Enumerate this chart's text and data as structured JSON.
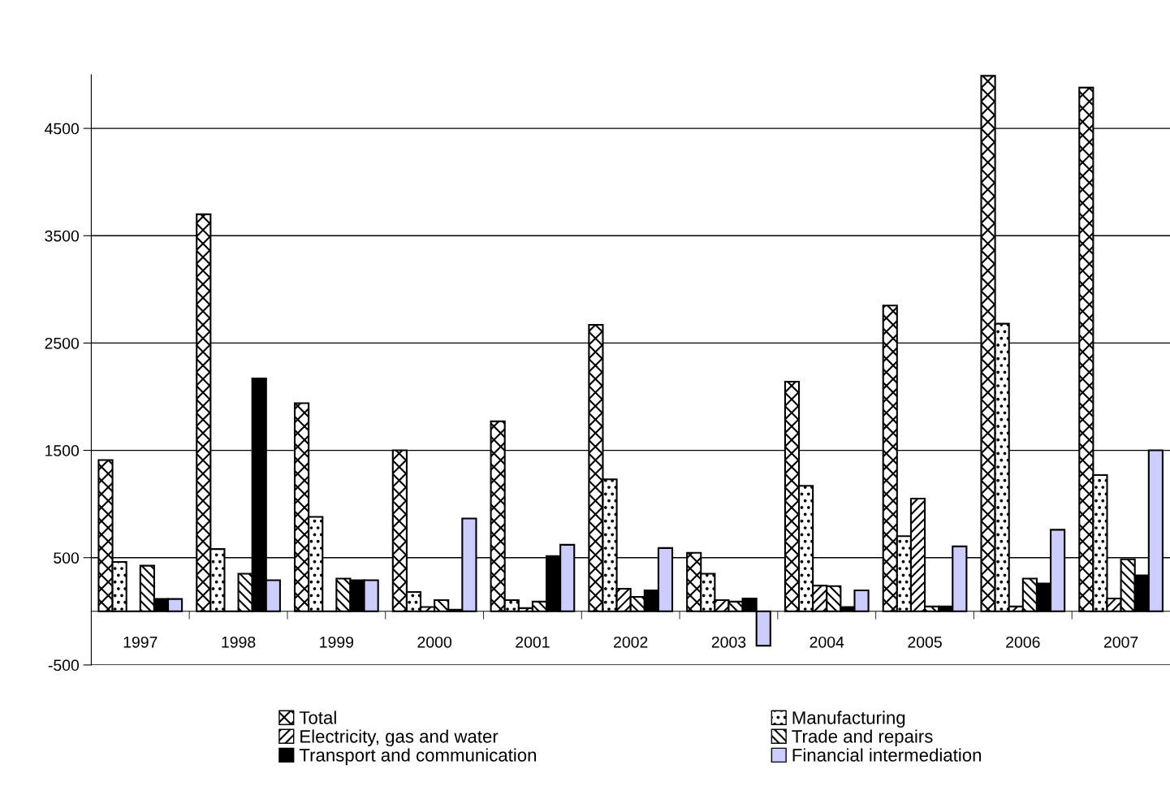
{
  "chart_data": {
    "type": "bar",
    "categories": [
      "1997",
      "1998",
      "1999",
      "2000",
      "2001",
      "2002",
      "2003",
      "2004",
      "2005",
      "2006",
      "2007"
    ],
    "series": [
      {
        "name": "Total",
        "color": "#000000",
        "values": [
          1410,
          3700,
          1940,
          1500,
          1770,
          2670,
          545,
          2140,
          2850,
          4990,
          4880
        ]
      },
      {
        "name": "Manufacturing",
        "color": "#000000",
        "values": [
          460,
          580,
          880,
          180,
          105,
          1230,
          350,
          1170,
          700,
          2680,
          1270
        ]
      },
      {
        "name": "Electricity, gas and water",
        "color": "#000000",
        "values": [
          0,
          0,
          0,
          40,
          30,
          210,
          105,
          240,
          1050,
          45,
          120
        ]
      },
      {
        "name": "Trade and repairs",
        "color": "#000000",
        "values": [
          425,
          350,
          305,
          105,
          90,
          135,
          90,
          235,
          45,
          305,
          485
        ]
      },
      {
        "name": "Transport and communication",
        "color": "#000000",
        "values": [
          115,
          2170,
          290,
          15,
          515,
          195,
          120,
          40,
          45,
          260,
          335
        ]
      },
      {
        "name": "Financial intermediation",
        "color": "#ccccff",
        "values": [
          115,
          290,
          290,
          865,
          620,
          590,
          -320,
          195,
          605,
          760,
          1500
        ]
      }
    ],
    "ylim": [
      -500,
      5000
    ],
    "yticks": [
      -500,
      500,
      1500,
      2500,
      3500,
      4500
    ],
    "grid": "y",
    "legend": "bottom"
  }
}
